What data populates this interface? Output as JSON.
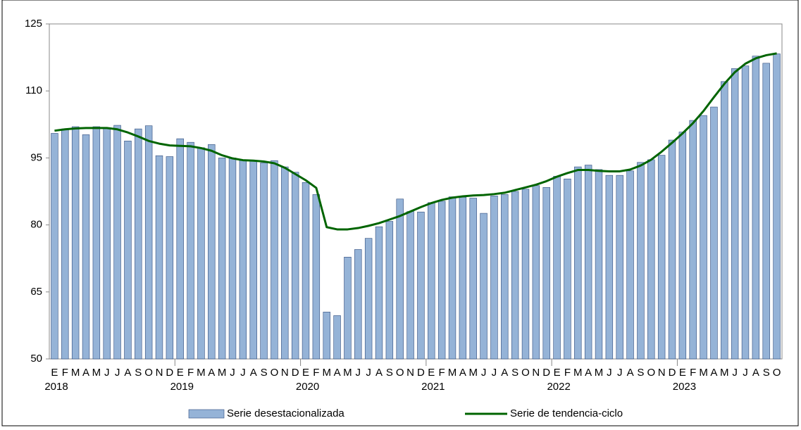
{
  "chart_data": {
    "type": "bar_line",
    "categories": [
      "E",
      "F",
      "M",
      "A",
      "M",
      "J",
      "J",
      "A",
      "S",
      "O",
      "N",
      "D",
      "E",
      "F",
      "M",
      "A",
      "M",
      "J",
      "J",
      "A",
      "S",
      "O",
      "N",
      "D",
      "E",
      "F",
      "M",
      "A",
      "M",
      "J",
      "J",
      "A",
      "S",
      "O",
      "N",
      "D",
      "E",
      "F",
      "M",
      "A",
      "M",
      "J",
      "J",
      "A",
      "S",
      "O",
      "N",
      "D",
      "E",
      "F",
      "M",
      "A",
      "M",
      "J",
      "J",
      "A",
      "S",
      "O",
      "N",
      "D",
      "E",
      "F",
      "M",
      "A",
      "M",
      "J",
      "J",
      "A",
      "S",
      "O"
    ],
    "year_labels": [
      "2018",
      "2019",
      "2020",
      "2021",
      "2022",
      "2023"
    ],
    "ylim": [
      50,
      125
    ],
    "yticks": [
      50,
      65,
      80,
      95,
      110,
      125
    ],
    "series": [
      {
        "name": "Serie desestacionalizada",
        "color": "#95b3d7",
        "kind": "bar",
        "values": [
          100.5,
          101.5,
          102,
          100.2,
          102,
          101.8,
          102.3,
          98.8,
          101.5,
          102.2,
          95.5,
          95.3,
          99.3,
          98.5,
          97.3,
          98,
          95,
          95,
          94.4,
          94.3,
          93.9,
          94.4,
          93,
          91.8,
          89.5,
          86.8,
          60.5,
          59.7,
          72.8,
          74.5,
          77,
          79.6,
          80.8,
          85.8,
          83,
          82.9,
          85,
          85.3,
          86.3,
          86.2,
          86,
          82.6,
          86.5,
          86.8,
          87.5,
          88,
          88.8,
          88.4,
          90.9,
          90.3,
          93,
          93.4,
          92.4,
          91.1,
          91.1,
          92.1,
          94,
          94.6,
          95.6,
          99,
          100.8,
          103.4,
          104.5,
          106.4,
          112.1,
          115,
          115.6,
          117.8,
          116.2,
          118.3
        ]
      },
      {
        "name": "Serie de tendencia-ciclo",
        "color": "#006400",
        "kind": "line",
        "values": [
          101.1,
          101.4,
          101.6,
          101.7,
          101.7,
          101.7,
          101.4,
          100.7,
          99.8,
          98.8,
          98.2,
          97.8,
          97.7,
          97.6,
          97.2,
          96.6,
          95.6,
          94.9,
          94.5,
          94.4,
          94.2,
          93.8,
          92.8,
          91.4,
          90,
          88.3,
          79.5,
          79,
          79,
          79.3,
          79.8,
          80.4,
          81.2,
          82,
          83,
          84,
          84.9,
          85.6,
          86.1,
          86.4,
          86.6,
          86.7,
          86.9,
          87.2,
          87.8,
          88.4,
          89,
          89.8,
          90.8,
          91.6,
          92.3,
          92.3,
          92.1,
          92,
          92,
          92.4,
          93.3,
          94.6,
          96.4,
          98.4,
          100.5,
          102.8,
          105.5,
          108.6,
          111.6,
          114.2,
          116.1,
          117.3,
          118,
          118.4
        ]
      }
    ]
  }
}
